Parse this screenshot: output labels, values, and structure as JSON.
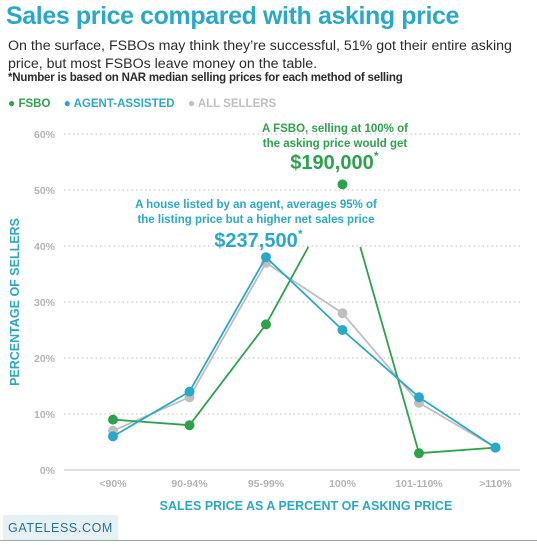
{
  "header": {
    "title": "Sales price compared with asking price",
    "subtitle": "On the surface, FSBOs may think they’re successful, 51% got their entire asking price, but most FSBOs leave money on the table.",
    "footnote": "*Number is based on NAR median selling prices for each method of selling"
  },
  "footer": {
    "brand": "GATELESS.COM"
  },
  "colors": {
    "fsbo": "#2ca24a",
    "agent": "#2aa8c9",
    "all": "#bfbfbf",
    "title": "#2aa8c9"
  },
  "chart_data": {
    "type": "line",
    "categories": [
      "<90%",
      "90-94%",
      "95-99%",
      "100%",
      "101-110%",
      ">110%"
    ],
    "series": [
      {
        "name": "FSBO",
        "values": [
          9,
          8,
          26,
          51,
          3,
          4
        ]
      },
      {
        "name": "AGENT-ASSISTED",
        "values": [
          6,
          14,
          38,
          25,
          13,
          4
        ]
      },
      {
        "name": "ALL SELLERS",
        "values": [
          7,
          13,
          37,
          28,
          12,
          4
        ]
      }
    ],
    "ylim": [
      0,
      60
    ],
    "yticks": [
      "0%",
      "10%",
      "20%",
      "30%",
      "40%",
      "50%",
      "60%"
    ],
    "xlabel": "SALES PRICE AS A PERCENT OF ASKING PRICE",
    "ylabel": "PERCENTAGE OF SELLERS",
    "legend_position": "top-left",
    "grid": "horizontal-dotted",
    "annotations": [
      {
        "series": "FSBO",
        "lines": [
          "A FSBO, selling at 100% of",
          "the asking price would get"
        ],
        "value": "$190,000",
        "mark": "*"
      },
      {
        "series": "AGENT-ASSISTED",
        "lines": [
          "A house listed by an agent, averages 95% of",
          "the listing price but a higher net sales price"
        ],
        "value": "$237,500",
        "mark": "*"
      }
    ]
  }
}
